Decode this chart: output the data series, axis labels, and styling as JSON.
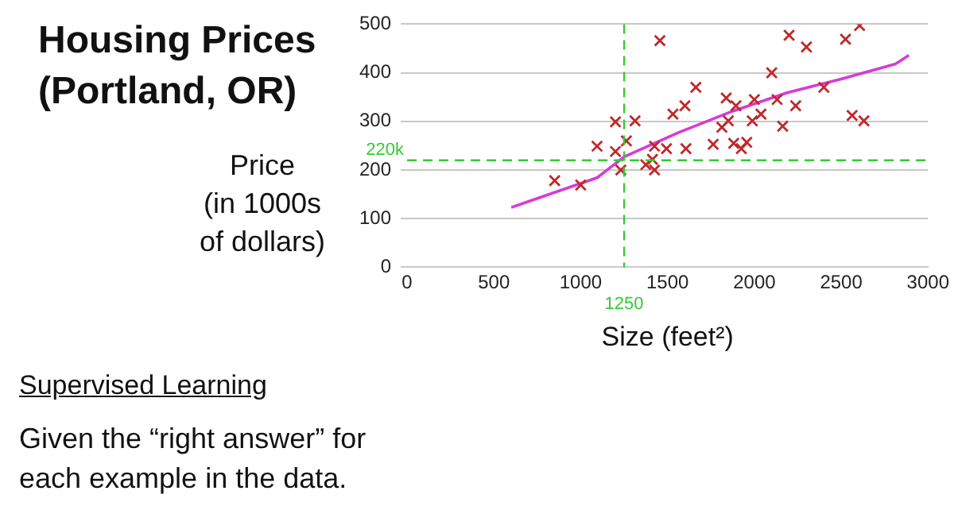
{
  "chart_data": {
    "type": "scatter",
    "title": "Housing Prices\n(Portland, OR)",
    "xlabel": "Size (feet²)",
    "ylabel": "Price\n(in 1000s\nof dollars)",
    "annotations": [
      "Supervised Learning",
      "Given the “right answer” for\neach example in the data."
    ],
    "xlim": [
      0,
      3000
    ],
    "xticks": [
      0,
      500,
      1000,
      1500,
      2000,
      2500,
      3000
    ],
    "ylim": [
      0,
      500
    ],
    "yticks": [
      0,
      100,
      200,
      300,
      400,
      500
    ],
    "grid": "y",
    "legend": false,
    "series": [
      {
        "type": "scatter",
        "color": "#c0282a",
        "marker": "cross",
        "x": [
          850,
          1000,
          1094,
          1200,
          1200,
          1231,
          1263,
          1313,
          1375,
          1413,
          1425,
          1425,
          1456,
          1494,
          1531,
          1600,
          1606,
          1663,
          1763,
          1813,
          1838,
          1850,
          1894,
          1881,
          1925,
          1956,
          1988,
          2000,
          2038,
          2100,
          2131,
          2163,
          2200,
          2238,
          2300,
          2400,
          2525,
          2563,
          2606,
          2631
        ],
        "values": [
          178,
          169,
          249,
          299,
          238,
          200,
          260,
          301,
          211,
          222,
          200,
          249,
          466,
          244,
          315,
          332,
          244,
          370,
          253,
          288,
          348,
          301,
          332,
          255,
          244,
          257,
          301,
          345,
          315,
          400,
          345,
          290,
          477,
          332,
          453,
          370,
          469,
          312,
          497,
          301
        ]
      },
      {
        "type": "line",
        "color": "#d63bd6",
        "marker": "none",
        "line_style": "solid",
        "x": [
          600,
          1094,
          1250,
          1563,
          1875,
          2188,
          2500,
          2813,
          2890
        ],
        "values": [
          123,
          184,
          227,
          277,
          321,
          359,
          387,
          418,
          436
        ]
      }
    ],
    "ref_lines": [
      {
        "axis": "y",
        "value": 220,
        "label": "220k",
        "color": "#33cc33",
        "line_style": "dashed"
      },
      {
        "axis": "x",
        "value": 1250,
        "label": "1250",
        "color": "#33cc33",
        "line_style": "dashed"
      }
    ]
  }
}
